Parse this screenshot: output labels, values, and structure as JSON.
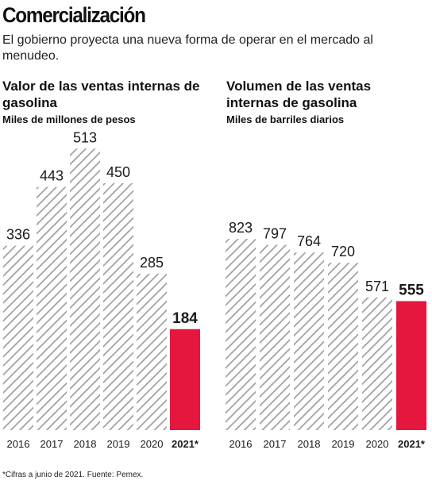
{
  "header": {
    "title": "Comercialización",
    "subtitle": "El gobierno proyecta una nueva forma de operar en el mercado al menudeo."
  },
  "colors": {
    "hatch": "#9e9e9e",
    "highlight": "#e5173f",
    "text": "#1a1a1a"
  },
  "chart_data": [
    {
      "type": "bar",
      "title": "Valor de las ventas internas de gasolina",
      "subtitle": "Miles de millones de pesos",
      "categories": [
        "2016",
        "2017",
        "2018",
        "2019",
        "2020",
        "2021*"
      ],
      "values": [
        336,
        443,
        513,
        450,
        285,
        184
      ],
      "value_labels": [
        "336",
        "443",
        "513",
        "450",
        "285",
        "184"
      ],
      "highlight_index": 5,
      "ylim": [
        0,
        600
      ]
    },
    {
      "type": "bar",
      "title": "Volumen de las ventas internas de gasolina",
      "subtitle": "Miles de barriles diarios",
      "categories": [
        "2016",
        "2017",
        "2018",
        "2019",
        "2020",
        "2021*"
      ],
      "values": [
        823,
        797,
        764,
        720,
        571,
        555
      ],
      "value_labels": [
        "823",
        "797",
        "764",
        "720",
        "571",
        "555"
      ],
      "highlight_index": 5,
      "ylim": [
        0,
        900
      ]
    }
  ],
  "footer": {
    "note": "*Cifras a junio de 2021. Fuente: Pemex."
  }
}
